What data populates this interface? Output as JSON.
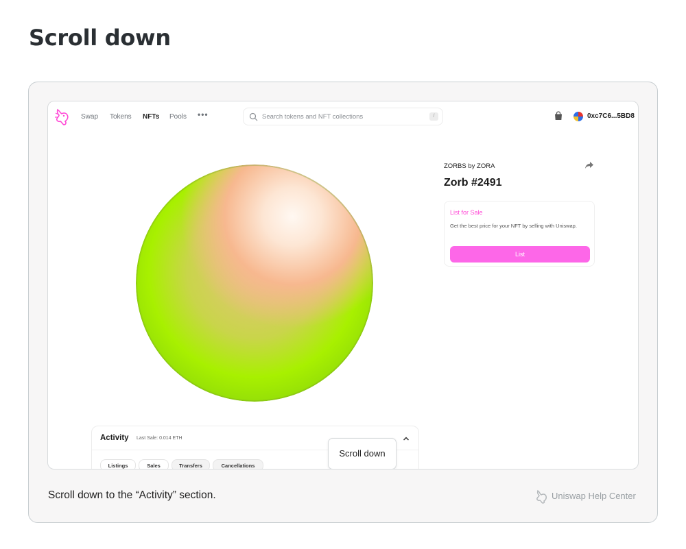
{
  "page": {
    "title": "Scroll down"
  },
  "nav": {
    "links": [
      "Swap",
      "Tokens",
      "NFTs",
      "Pools"
    ],
    "active": "NFTs",
    "more": "•••",
    "search_placeholder": "Search tokens and NFT collections",
    "search_shortcut": "/",
    "wallet_address": "0xc7C6...5BD8"
  },
  "nft": {
    "collection": "ZORBS by ZORA",
    "title": "Zorb #2491"
  },
  "listing": {
    "heading": "List for Sale",
    "description": "Get the best price for your NFT by selling with Uniswap.",
    "button_label": "List"
  },
  "activity": {
    "title": "Activity",
    "last_sale": "Last Sale: 0.014 ETH",
    "tabs": [
      "Listings",
      "Sales",
      "Transfers",
      "Cancellations"
    ]
  },
  "tooltip": "Scroll down",
  "caption": "Scroll down to the “Activity” section.",
  "brand": "Uniswap Help Center",
  "colors": {
    "accent_pink": "#fd67e8",
    "list_heading": "#ff4ad6"
  }
}
